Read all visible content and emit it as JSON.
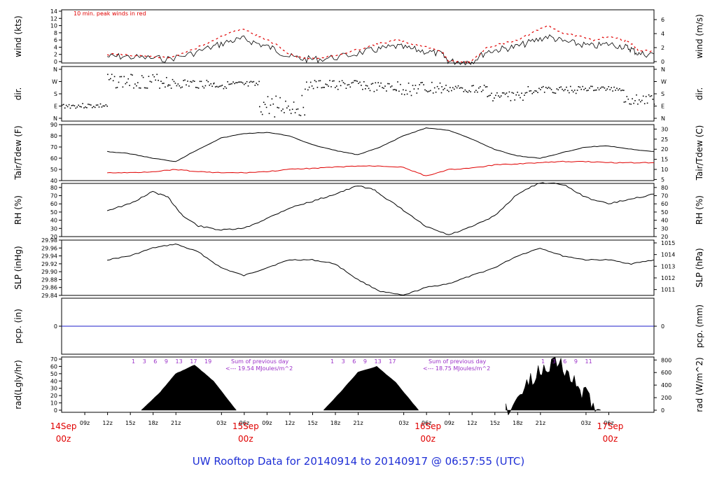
{
  "title": "UW Rooftop Data for 20140914  to  20140917 @ 06:57:55  (UTC)",
  "colors": {
    "title": "#1f2fd6",
    "peak": "#e00000",
    "ann": "#9b30c8",
    "trace": "#000000",
    "pcp": "#1c1cc8",
    "red_label": "#e00000"
  },
  "chart_data": [
    {
      "panel": "wind",
      "type": "line",
      "ylabel_left": "wind (kts)",
      "ylabel_right": "wind (m/s)",
      "ylim": [
        0,
        14
      ],
      "yticks_left": [
        "0",
        "2",
        "4",
        "6",
        "8",
        "10",
        "12",
        "14"
      ],
      "yticks_right": [
        "0",
        "2",
        "4",
        "6"
      ],
      "annotation": "10 min. peak winds in red",
      "series": [
        {
          "name": "10 min. peak winds in red",
          "x": [
            0,
            2,
            5,
            8,
            11,
            14,
            16,
            18,
            20,
            22,
            24,
            26,
            28,
            31,
            34,
            36,
            38,
            40,
            42,
            44,
            45,
            47,
            48,
            50,
            52,
            54,
            56,
            58,
            60,
            62,
            64,
            66,
            68,
            69,
            70,
            72
          ],
          "y": [
            2,
            2,
            1.5,
            1,
            3,
            6,
            8,
            9,
            7,
            5,
            2,
            1,
            1,
            2,
            4,
            5,
            6,
            5,
            4,
            3,
            0,
            0,
            0,
            4,
            5,
            6,
            8,
            10,
            8,
            7,
            6,
            7,
            6,
            5,
            3,
            3
          ]
        }
      ]
    },
    {
      "panel": "dir",
      "type": "scatter",
      "ylabel_left": "dir.",
      "ylabel_right": "dir.",
      "yticks_left": [
        "N",
        "W",
        "S",
        "E",
        "N"
      ],
      "yticks_right": [
        "N",
        "W",
        "S",
        "E",
        "N"
      ]
    },
    {
      "panel": "temp",
      "type": "line",
      "ylabel_left": "Tair/Tdew (F)",
      "ylabel_right": "Tair/Tdew (C)",
      "ylim": [
        40,
        90
      ],
      "yticks_left": [
        "40",
        "50",
        "60",
        "70",
        "80",
        "90"
      ],
      "yticks_right": [
        "5",
        "10",
        "15",
        "20",
        "25",
        "30"
      ],
      "series": [
        {
          "x": [
            0,
            3,
            6,
            9,
            12,
            15,
            18,
            21,
            24,
            27,
            30,
            33,
            36,
            39,
            42,
            45,
            48,
            51,
            54,
            57,
            60,
            63,
            66,
            69,
            72
          ],
          "y": [
            66,
            64,
            60,
            57,
            68,
            78,
            82,
            83,
            80,
            72,
            67,
            63,
            70,
            80,
            87,
            85,
            77,
            68,
            62,
            60,
            65,
            70,
            71,
            68,
            66
          ]
        },
        {
          "x": [
            0,
            3,
            6,
            9,
            12,
            15,
            18,
            21,
            24,
            27,
            30,
            33,
            36,
            39,
            42,
            45,
            48,
            51,
            54,
            57,
            60,
            63,
            66,
            69,
            72
          ],
          "y": [
            47,
            47,
            48,
            50,
            48,
            47,
            47,
            48,
            50,
            51,
            52,
            53,
            53,
            52,
            44,
            50,
            51,
            54,
            55,
            56,
            57,
            57,
            56,
            56,
            56
          ]
        }
      ]
    },
    {
      "panel": "rh",
      "type": "line",
      "ylabel_left": "RH (%)",
      "ylabel_right": "RH (%)",
      "ylim": [
        20,
        85
      ],
      "yticks_left": [
        "20",
        "30",
        "40",
        "50",
        "60",
        "70",
        "80"
      ],
      "yticks_right": [
        "20",
        "30",
        "40",
        "50",
        "60",
        "70",
        "80"
      ],
      "series": [
        {
          "x": [
            0,
            3,
            6,
            8,
            10,
            12,
            15,
            18,
            21,
            24,
            27,
            30,
            33,
            35,
            37,
            39,
            42,
            45,
            48,
            51,
            54,
            57,
            60,
            63,
            66,
            69,
            72
          ],
          "y": [
            52,
            60,
            75,
            68,
            45,
            33,
            28,
            30,
            42,
            55,
            63,
            72,
            82,
            78,
            65,
            52,
            32,
            22,
            32,
            45,
            72,
            86,
            84,
            68,
            60,
            66,
            72
          ]
        }
      ]
    },
    {
      "panel": "slp",
      "type": "line",
      "ylabel_left": "SLP (inHg)",
      "ylabel_right": "SLP (hPa)",
      "ylim": [
        29.84,
        29.98
      ],
      "yticks_left": [
        "29.84",
        "29.86",
        "29.88",
        "29.90",
        "29.92",
        "29.94",
        "29.96",
        "29.98"
      ],
      "yticks_right": [
        "1011",
        "1012",
        "1013",
        "1014",
        "1015"
      ],
      "series": [
        {
          "x": [
            0,
            3,
            6,
            9,
            12,
            15,
            18,
            21,
            24,
            27,
            30,
            33,
            36,
            39,
            42,
            45,
            48,
            51,
            54,
            57,
            60,
            63,
            66,
            69,
            72
          ],
          "y": [
            29.93,
            29.94,
            29.96,
            29.97,
            29.95,
            29.91,
            29.89,
            29.91,
            29.93,
            29.93,
            29.92,
            29.88,
            29.85,
            29.84,
            29.86,
            29.87,
            29.89,
            29.91,
            29.94,
            29.96,
            29.94,
            29.93,
            29.93,
            29.92,
            29.93
          ]
        }
      ]
    },
    {
      "panel": "pcp",
      "type": "line",
      "ylabel_left": "pcp. (in)",
      "ylabel_right": "pcp. (mm)",
      "yticks_left": [
        "0"
      ],
      "yticks_right": [
        "0"
      ],
      "series": [
        {
          "x": [
            0,
            72
          ],
          "y": [
            0,
            0
          ]
        }
      ]
    },
    {
      "panel": "rad",
      "type": "area",
      "ylabel_left": "rad(Lgly/hr)",
      "ylabel_right": "rad (W/m^2)",
      "ylim": [
        0,
        70
      ],
      "yticks_left": [
        "0",
        "10",
        "20",
        "30",
        "40",
        "50",
        "60",
        "70"
      ],
      "yticks_right": [
        "0",
        "200",
        "400",
        "600",
        "800"
      ],
      "series": [
        {
          "x": [
            4.5,
            7,
            9,
            11.5,
            14,
            17
          ],
          "y": [
            0,
            25,
            50,
            62,
            40,
            0
          ]
        },
        {
          "x": [
            28.5,
            31,
            33,
            35.5,
            38,
            41
          ],
          "y": [
            0,
            28,
            52,
            60,
            38,
            0
          ]
        },
        {
          "x": [
            52.5,
            55,
            57,
            59,
            61,
            63,
            65
          ],
          "y": [
            0,
            30,
            55,
            70,
            45,
            20,
            0
          ]
        }
      ],
      "annotations": [
        {
          "hours": "1 3 6 9 13 17 19",
          "line1": "Sum of previous day",
          "line2": "<--- 19.54 MJoules/m^2"
        },
        {
          "hours": "1 3 6 9 13 17",
          "line1": "Sum of previous day",
          "line2": "<--- 18.75 MJoules/m^2"
        },
        {
          "hours": "1 3 6 9 11"
        }
      ]
    }
  ],
  "xaxis": {
    "ticks": [
      "09z",
      "12z",
      "15z",
      "18z",
      "21z",
      "03z",
      "06z",
      "09z",
      "12z",
      "15z",
      "18z",
      "21z",
      "03z",
      "06z",
      "09z",
      "12z",
      "15z",
      "18z",
      "21z",
      "03z",
      "06z"
    ],
    "dates": [
      {
        "day": "14Sep",
        "label": "00z"
      },
      {
        "day": "15Sep",
        "label": "00z"
      },
      {
        "day": "16Sep",
        "label": "00z"
      },
      {
        "day": "17Sep",
        "label": "00z"
      }
    ]
  }
}
